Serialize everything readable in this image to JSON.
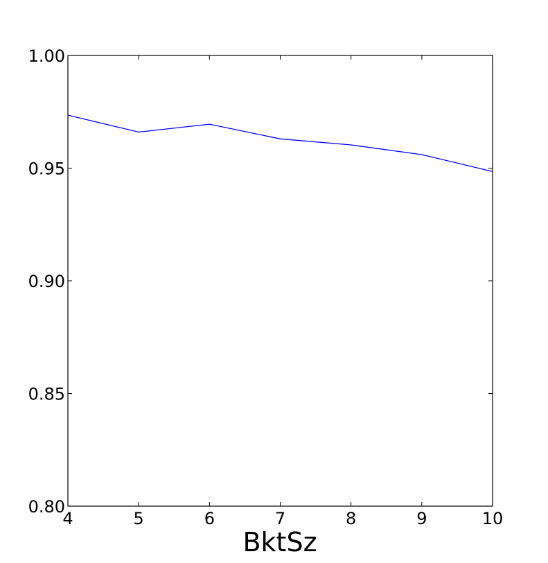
{
  "chart_data": {
    "type": "line",
    "title": "",
    "xlabel": "BktSz",
    "ylabel": "",
    "xlim": [
      4,
      10
    ],
    "ylim": [
      0.8,
      1.0
    ],
    "xticks": [
      4,
      5,
      6,
      7,
      8,
      9,
      10
    ],
    "xtick_labels": [
      "4",
      "5",
      "6",
      "7",
      "8",
      "9",
      "10"
    ],
    "yticks": [
      0.8,
      0.85,
      0.9,
      0.95,
      1.0
    ],
    "ytick_labels": [
      "0.80",
      "0.85",
      "0.90",
      "0.95",
      "1.00"
    ],
    "grid": false,
    "legend": "none",
    "series": [
      {
        "color": "#0000ff",
        "x": [
          4,
          5,
          6,
          7,
          8,
          9,
          10
        ],
        "y": [
          0.9735,
          0.966,
          0.9695,
          0.963,
          0.9603,
          0.956,
          0.9485
        ]
      }
    ]
  }
}
